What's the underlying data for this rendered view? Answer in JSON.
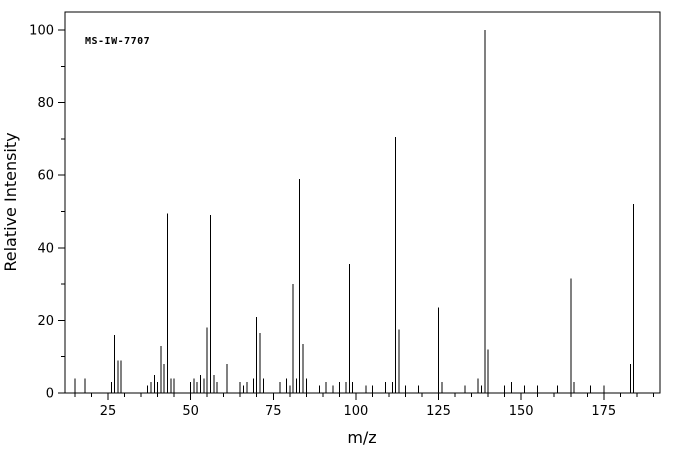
{
  "chart_data": {
    "type": "bar",
    "subtype": "mass-spectrum-stick-plot",
    "title": "",
    "annotation": "MS-IW-7707",
    "xlabel": "m/z",
    "ylabel": "Relative Intensity",
    "xlim": [
      12,
      192
    ],
    "ylim": [
      0,
      100
    ],
    "grid": false,
    "legend": false,
    "line_color": "#000000",
    "background_color": "#ffffff",
    "x_major_ticks": [
      25,
      50,
      75,
      100,
      125,
      150,
      175
    ],
    "x_minor_tick_step": 5,
    "y_major_ticks": [
      0,
      20,
      40,
      60,
      80,
      100
    ],
    "y_minor_tick_step": 10,
    "peaks": [
      [
        15,
        4
      ],
      [
        18,
        4
      ],
      [
        26,
        3
      ],
      [
        27,
        16
      ],
      [
        28,
        9
      ],
      [
        29,
        9
      ],
      [
        37,
        2
      ],
      [
        38,
        3
      ],
      [
        39,
        5
      ],
      [
        40,
        3
      ],
      [
        41,
        13
      ],
      [
        42,
        8
      ],
      [
        43,
        49.5
      ],
      [
        44,
        4
      ],
      [
        45,
        4
      ],
      [
        50,
        3
      ],
      [
        51,
        4
      ],
      [
        52,
        3
      ],
      [
        53,
        5
      ],
      [
        54,
        4
      ],
      [
        55,
        18
      ],
      [
        56,
        49
      ],
      [
        57,
        5
      ],
      [
        58,
        3
      ],
      [
        61,
        8
      ],
      [
        65,
        3
      ],
      [
        66,
        2
      ],
      [
        67,
        3
      ],
      [
        69,
        4
      ],
      [
        70,
        21
      ],
      [
        71,
        16.5
      ],
      [
        72,
        4
      ],
      [
        77,
        3
      ],
      [
        79,
        4
      ],
      [
        80,
        2
      ],
      [
        81,
        30
      ],
      [
        82,
        4
      ],
      [
        83,
        59
      ],
      [
        84,
        13.5
      ],
      [
        85,
        4
      ],
      [
        89,
        2
      ],
      [
        91,
        3
      ],
      [
        93,
        2
      ],
      [
        95,
        3
      ],
      [
        97,
        3
      ],
      [
        98,
        35.5
      ],
      [
        99,
        3
      ],
      [
        103,
        2
      ],
      [
        105,
        2
      ],
      [
        109,
        3
      ],
      [
        111,
        3
      ],
      [
        112,
        70.5
      ],
      [
        113,
        17.5
      ],
      [
        115,
        2
      ],
      [
        119,
        2
      ],
      [
        125,
        23.5
      ],
      [
        126,
        3
      ],
      [
        133,
        2
      ],
      [
        137,
        4
      ],
      [
        138,
        2
      ],
      [
        139,
        100
      ],
      [
        140,
        12
      ],
      [
        145,
        2
      ],
      [
        147,
        3
      ],
      [
        151,
        2
      ],
      [
        155,
        2
      ],
      [
        161,
        2
      ],
      [
        165,
        31.5
      ],
      [
        166,
        3
      ],
      [
        171,
        2
      ],
      [
        175,
        2
      ],
      [
        183,
        8
      ],
      [
        184,
        52
      ]
    ]
  }
}
